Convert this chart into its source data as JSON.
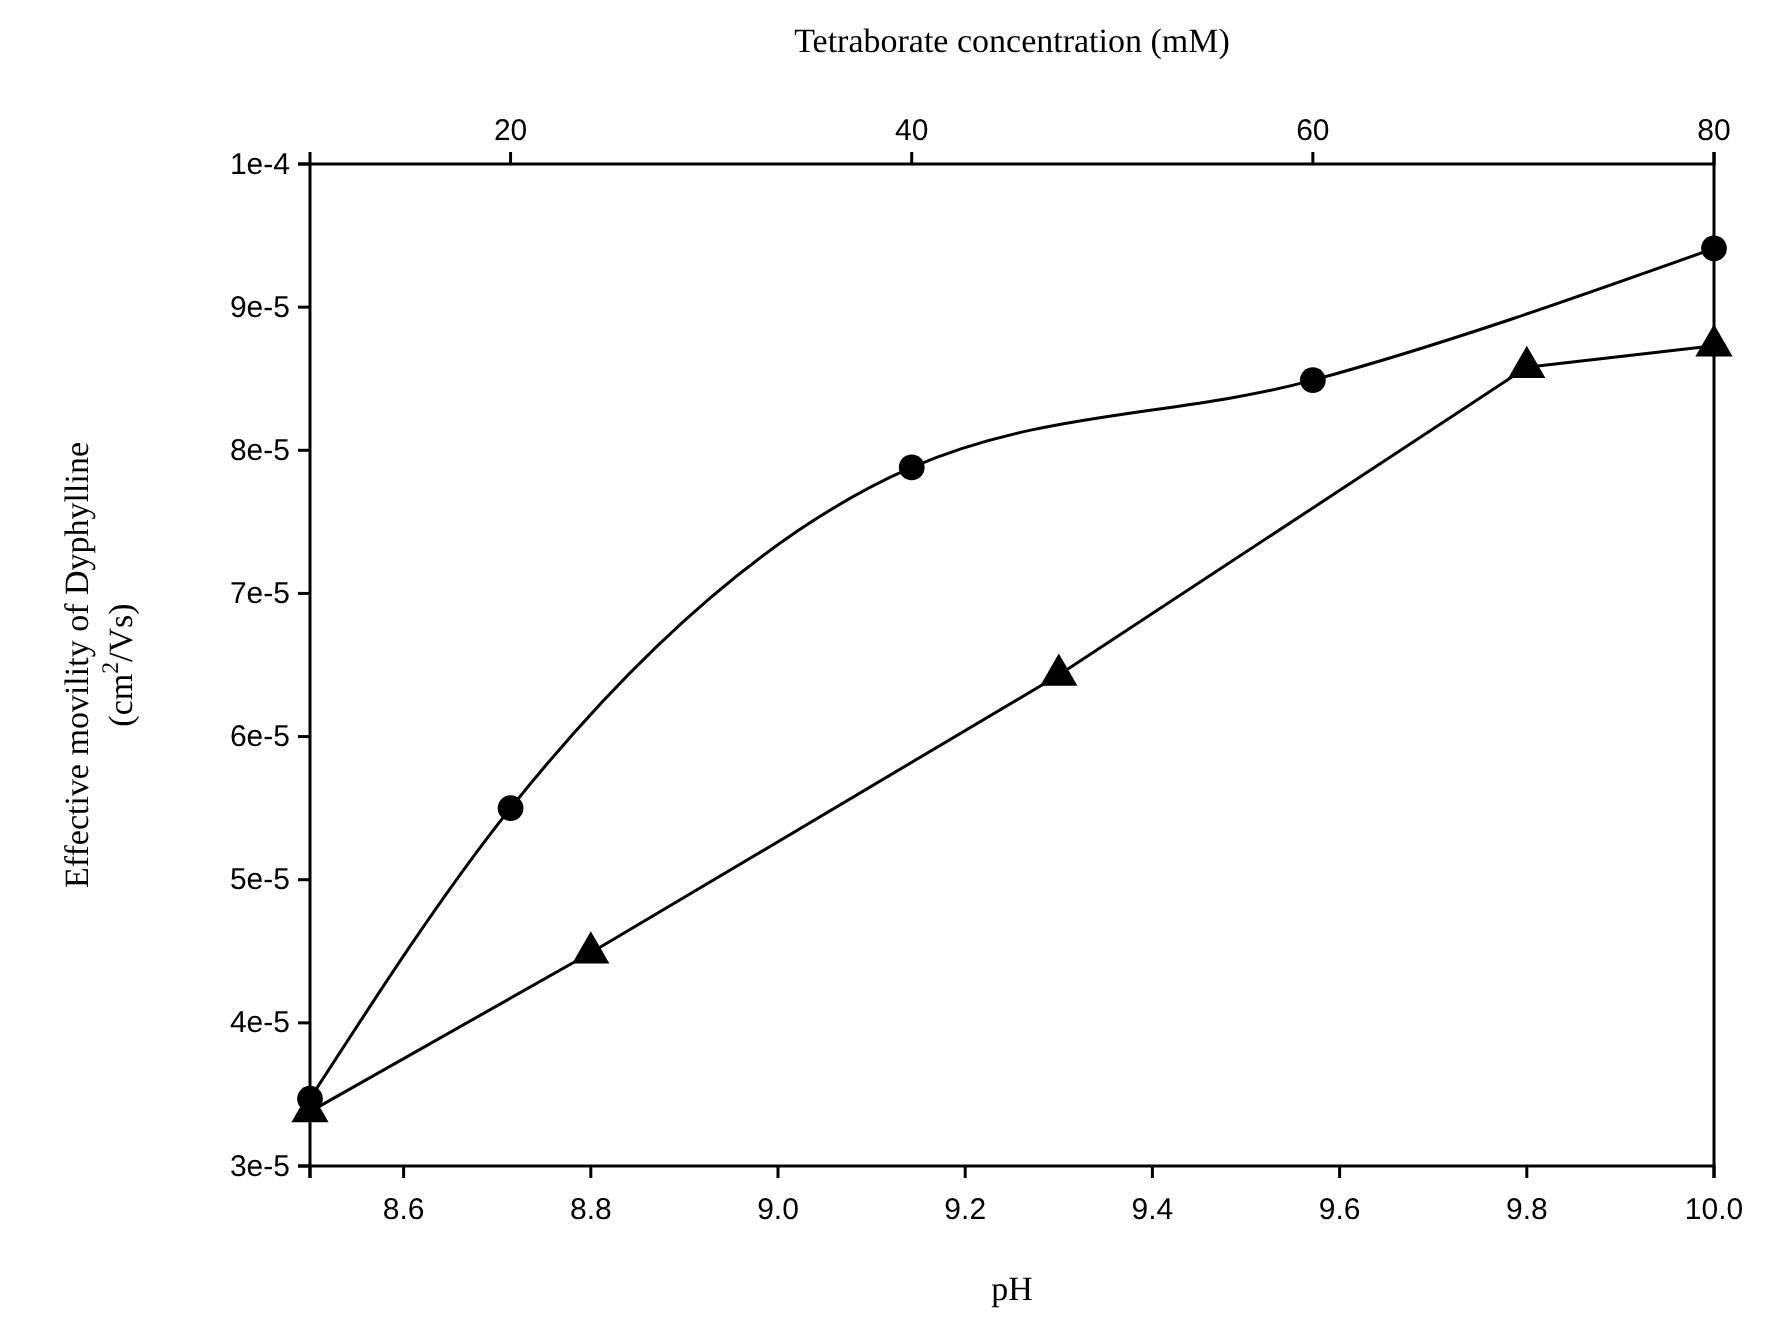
{
  "chart_data": {
    "type": "line",
    "xlabel": "pH",
    "x2label": "Tetraborate concentration (mM)",
    "ylabel": "Effective movility of Dyphylline\n(cm$^{2}$/Vs)",
    "xlim": [
      8.5,
      10.0
    ],
    "xticks": [
      {
        "value": 8.5,
        "label": null
      },
      {
        "value": 8.6,
        "label": "8.6"
      },
      {
        "value": 8.8,
        "label": "8.8"
      },
      {
        "value": 9.0,
        "label": "9.0"
      },
      {
        "value": 9.2,
        "label": "9.2"
      },
      {
        "value": 9.4,
        "label": "9.4"
      },
      {
        "value": 9.6,
        "label": "9.6"
      },
      {
        "value": 9.8,
        "label": "9.8"
      },
      {
        "value": 10.0,
        "label": "10.0"
      }
    ],
    "x2lim": [
      10,
      80
    ],
    "x2ticks": [
      20,
      40,
      60,
      80
    ],
    "ylim": [
      3e-05,
      0.0001
    ],
    "yticks": [
      {
        "value": 3e-05,
        "label": "3e-5"
      },
      {
        "value": 4e-05,
        "label": "4e-5"
      },
      {
        "value": 5e-05,
        "label": "5e-5"
      },
      {
        "value": 6e-05,
        "label": "6e-5"
      },
      {
        "value": 7e-05,
        "label": "7e-5"
      },
      {
        "value": 8e-05,
        "label": "8e-5"
      },
      {
        "value": 9e-05,
        "label": "9e-5"
      },
      {
        "value": 0.0001,
        "label": "1e-4"
      }
    ],
    "grid": false,
    "line_style": "solid",
    "series": [
      {
        "color": "#000000",
        "axis": "x2",
        "marker": "circle",
        "x": [
          10,
          20,
          40,
          60,
          80
        ],
        "values": [
          3.47e-05,
          5.5e-05,
          7.88e-05,
          8.49e-05,
          9.41e-05
        ]
      },
      {
        "color": "#000000",
        "marker": "triangle",
        "x": [
          8.5,
          8.8,
          9.3,
          9.8,
          10.0
        ],
        "values": [
          3.38e-05,
          4.49e-05,
          6.43e-05,
          8.58e-05,
          8.73e-05
        ]
      }
    ]
  }
}
